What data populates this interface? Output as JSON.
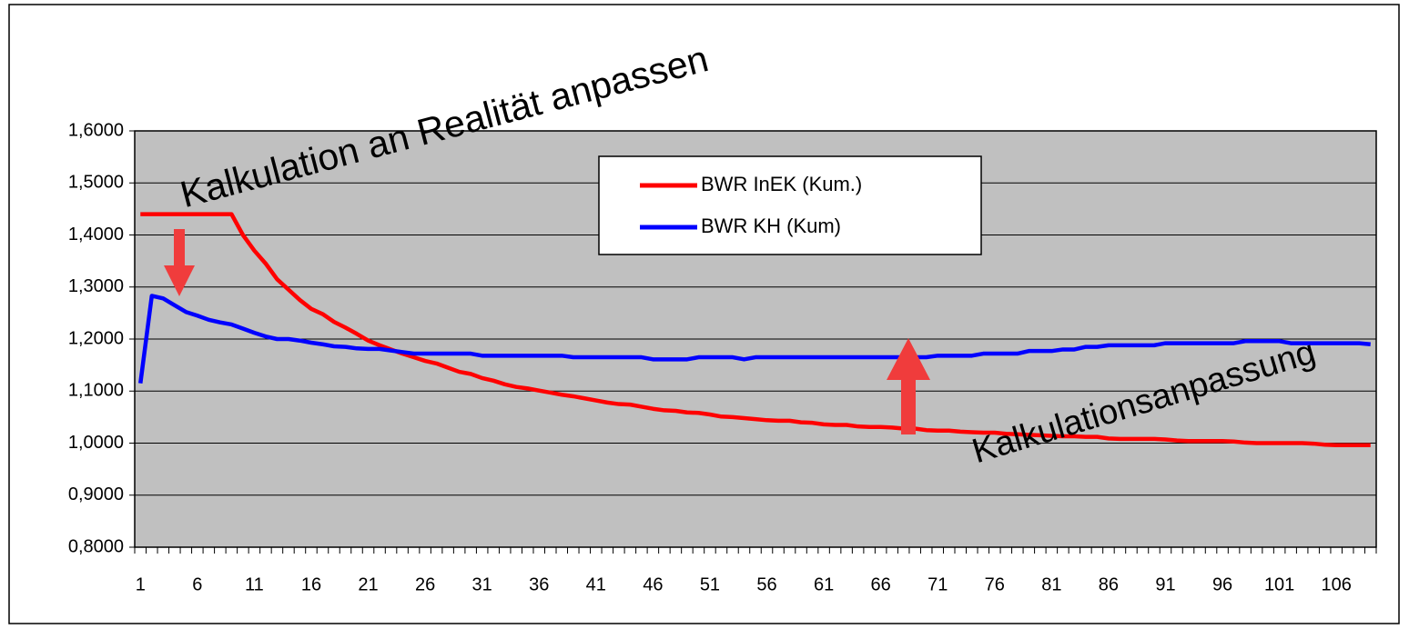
{
  "chart_data": {
    "type": "line",
    "categories": [
      "1",
      null,
      null,
      null,
      null,
      "6",
      null,
      null,
      null,
      null,
      "11",
      null,
      null,
      null,
      null,
      "16",
      null,
      null,
      null,
      null,
      "21",
      null,
      null,
      null,
      null,
      "26",
      null,
      null,
      null,
      null,
      "31",
      null,
      null,
      null,
      null,
      "36",
      null,
      null,
      null,
      null,
      "41",
      null,
      null,
      null,
      null,
      "46",
      null,
      null,
      null,
      null,
      "51",
      null,
      null,
      null,
      null,
      "56",
      null,
      null,
      null,
      null,
      "61",
      null,
      null,
      null,
      null,
      "66",
      null,
      null,
      null,
      null,
      "71",
      null,
      null,
      null,
      null,
      "76",
      null,
      null,
      null,
      null,
      "81",
      null,
      null,
      null,
      null,
      "86",
      null,
      null,
      null,
      null,
      "91",
      null,
      null,
      null,
      null,
      "96",
      null,
      null,
      null,
      null,
      "101",
      null,
      null,
      null,
      null,
      "106",
      null,
      null,
      null
    ],
    "series": [
      {
        "name": "BWR InEK (Kum.)",
        "color": "#ff0000",
        "values": [
          1.44,
          1.44,
          1.44,
          1.44,
          1.44,
          1.44,
          1.44,
          1.44,
          1.44,
          1.4,
          1.37,
          1.345,
          1.315,
          1.295,
          1.275,
          1.258,
          1.248,
          1.233,
          1.222,
          1.21,
          1.197,
          1.188,
          1.18,
          1.172,
          1.165,
          1.158,
          1.153,
          1.145,
          1.137,
          1.133,
          1.125,
          1.12,
          1.113,
          1.108,
          1.105,
          1.101,
          1.097,
          1.093,
          1.09,
          1.086,
          1.082,
          1.078,
          1.075,
          1.074,
          1.07,
          1.066,
          1.063,
          1.062,
          1.059,
          1.058,
          1.055,
          1.051,
          1.05,
          1.048,
          1.046,
          1.044,
          1.043,
          1.043,
          1.04,
          1.039,
          1.036,
          1.035,
          1.035,
          1.032,
          1.031,
          1.031,
          1.03,
          1.028,
          1.028,
          1.025,
          1.024,
          1.024,
          1.022,
          1.021,
          1.02,
          1.02,
          1.018,
          1.017,
          1.016,
          1.015,
          1.014,
          1.013,
          1.013,
          1.012,
          1.012,
          1.009,
          1.008,
          1.008,
          1.008,
          1.008,
          1.007,
          1.005,
          1.004,
          1.004,
          1.004,
          1.004,
          1.003,
          1.001,
          1.0,
          1.0,
          1.0,
          1.0,
          1.0,
          0.999,
          0.997,
          0.996,
          0.996,
          0.996,
          0.996
        ]
      },
      {
        "name": "BWR KH (Kum)",
        "color": "#0000ff",
        "values": [
          1.115,
          1.283,
          1.278,
          1.265,
          1.252,
          1.245,
          1.237,
          1.232,
          1.228,
          1.22,
          1.212,
          1.205,
          1.2,
          1.2,
          1.197,
          1.193,
          1.19,
          1.186,
          1.185,
          1.182,
          1.181,
          1.181,
          1.178,
          1.175,
          1.172,
          1.172,
          1.172,
          1.172,
          1.172,
          1.172,
          1.168,
          1.168,
          1.168,
          1.168,
          1.168,
          1.168,
          1.168,
          1.168,
          1.165,
          1.165,
          1.165,
          1.165,
          1.165,
          1.165,
          1.165,
          1.161,
          1.161,
          1.161,
          1.161,
          1.165,
          1.165,
          1.165,
          1.165,
          1.161,
          1.165,
          1.165,
          1.165,
          1.165,
          1.165,
          1.165,
          1.165,
          1.165,
          1.165,
          1.165,
          1.165,
          1.165,
          1.165,
          1.165,
          1.165,
          1.165,
          1.168,
          1.168,
          1.168,
          1.168,
          1.172,
          1.172,
          1.172,
          1.172,
          1.177,
          1.177,
          1.177,
          1.18,
          1.18,
          1.185,
          1.185,
          1.188,
          1.188,
          1.188,
          1.188,
          1.188,
          1.192,
          1.192,
          1.192,
          1.192,
          1.192,
          1.192,
          1.192,
          1.196,
          1.196,
          1.196,
          1.196,
          1.192,
          1.192,
          1.192,
          1.192,
          1.192,
          1.192,
          1.192,
          1.19
        ]
      }
    ],
    "ylim": [
      0.8,
      1.6
    ],
    "yticks": [
      {
        "value": 0.8,
        "label": "0,8000"
      },
      {
        "value": 0.9,
        "label": "0,9000"
      },
      {
        "value": 1.0,
        "label": "1,0000"
      },
      {
        "value": 1.1,
        "label": "1,1000"
      },
      {
        "value": 1.2,
        "label": "1,2000"
      },
      {
        "value": 1.3,
        "label": "1,3000"
      },
      {
        "value": 1.4,
        "label": "1,4000"
      },
      {
        "value": 1.5,
        "label": "1,5000"
      },
      {
        "value": 1.6,
        "label": "1,6000"
      }
    ],
    "grid": true,
    "legend": "top",
    "annotations": [
      {
        "text": "Kalkulation an Realität anpassen"
      },
      {
        "text": "Kalkulationsanpassung"
      }
    ]
  }
}
